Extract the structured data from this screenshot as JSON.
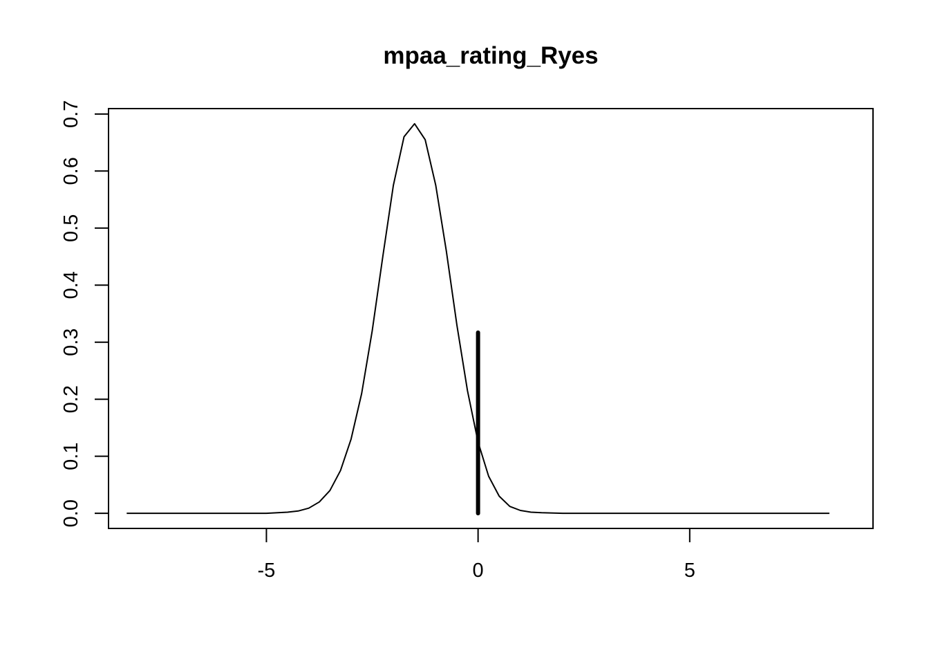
{
  "chart_data": {
    "type": "line",
    "title": "mpaa_rating_Ryes",
    "xlabel": "",
    "ylabel": "",
    "xlim": [
      -8.73,
      9.33
    ],
    "ylim": [
      -0.0265,
      0.7095
    ],
    "x_ticks": [
      -5,
      0,
      5
    ],
    "x_tick_labels": [
      "-5",
      "0",
      "5"
    ],
    "y_ticks": [
      0,
      0.1,
      0.2,
      0.3,
      0.4,
      0.5,
      0.6,
      0.7
    ],
    "y_tick_labels": [
      "0.0",
      "0.1",
      "0.2",
      "0.3",
      "0.4",
      "0.5",
      "0.6",
      "0.7"
    ],
    "grid": false,
    "series": [
      {
        "style": "thin-line",
        "color": "#000000",
        "x": [
          -8.3,
          -6,
          -5,
          -4.5,
          -4.25,
          -4,
          -3.75,
          -3.5,
          -3.25,
          -3,
          -2.75,
          -2.5,
          -2.25,
          -2,
          -1.75,
          -1.5,
          -1.25,
          -1,
          -0.75,
          -0.5,
          -0.25,
          0,
          0.25,
          0.5,
          0.75,
          1,
          1.25,
          1.5,
          2,
          3,
          5,
          8.3
        ],
        "y": [
          0,
          0,
          0,
          0.002,
          0.004,
          0.009,
          0.02,
          0.04,
          0.075,
          0.13,
          0.21,
          0.32,
          0.45,
          0.575,
          0.66,
          0.683,
          0.655,
          0.575,
          0.46,
          0.33,
          0.215,
          0.125,
          0.065,
          0.03,
          0.012,
          0.005,
          0.002,
          0.001,
          0,
          0,
          0,
          0
        ]
      },
      {
        "style": "thick-line",
        "color": "#000000",
        "x": [
          0,
          0
        ],
        "y": [
          0,
          0.317
        ]
      }
    ]
  }
}
